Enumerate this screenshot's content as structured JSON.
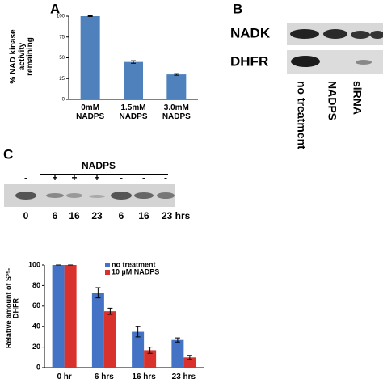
{
  "panels": {
    "a": "A",
    "b": "B",
    "c": "C"
  },
  "blot_b": {
    "rows": [
      "NADK",
      "DHFR"
    ],
    "lanes": [
      "no treatment",
      "NADPS",
      "siRNA"
    ]
  },
  "blot_c": {
    "group": "NADPS",
    "signs": [
      "-",
      "+",
      "+",
      "+",
      "-",
      "-",
      "-"
    ],
    "times": [
      "0",
      "6",
      "16",
      "23",
      "6",
      "16",
      "23 hrs"
    ]
  },
  "chart_data": [
    {
      "type": "bar",
      "ylabel": "% NAD kinase\nactivity\nremaining",
      "categories": [
        "0mM\nNADPS",
        "1.5mM\nNADPS",
        "3.0mM\nNADPS"
      ],
      "series": [
        {
          "color": "#4f81bd",
          "values": [
            100,
            45,
            30
          ],
          "errors": [
            0.5,
            1.5,
            1
          ]
        }
      ],
      "ylim": [
        0,
        100
      ],
      "yticks": [
        0,
        25,
        50,
        75,
        100
      ]
    },
    {
      "type": "bar",
      "ylabel": "Relative amount of S³⁵-DHFR",
      "categories": [
        "0 hr",
        "6 hrs",
        "16 hrs",
        "23 hrs"
      ],
      "series": [
        {
          "name": "no treatment",
          "color": "#4472c4",
          "values": [
            100,
            73,
            35,
            27
          ],
          "errors": [
            0,
            5,
            5,
            2
          ]
        },
        {
          "name": "10 µM NADPS",
          "color": "#d9312b",
          "values": [
            100,
            55,
            17,
            10
          ],
          "errors": [
            0,
            3,
            3,
            2
          ]
        }
      ],
      "ylim": [
        0,
        100
      ],
      "yticks": [
        0,
        20,
        40,
        60,
        80,
        100
      ],
      "legend": "top-right"
    }
  ]
}
